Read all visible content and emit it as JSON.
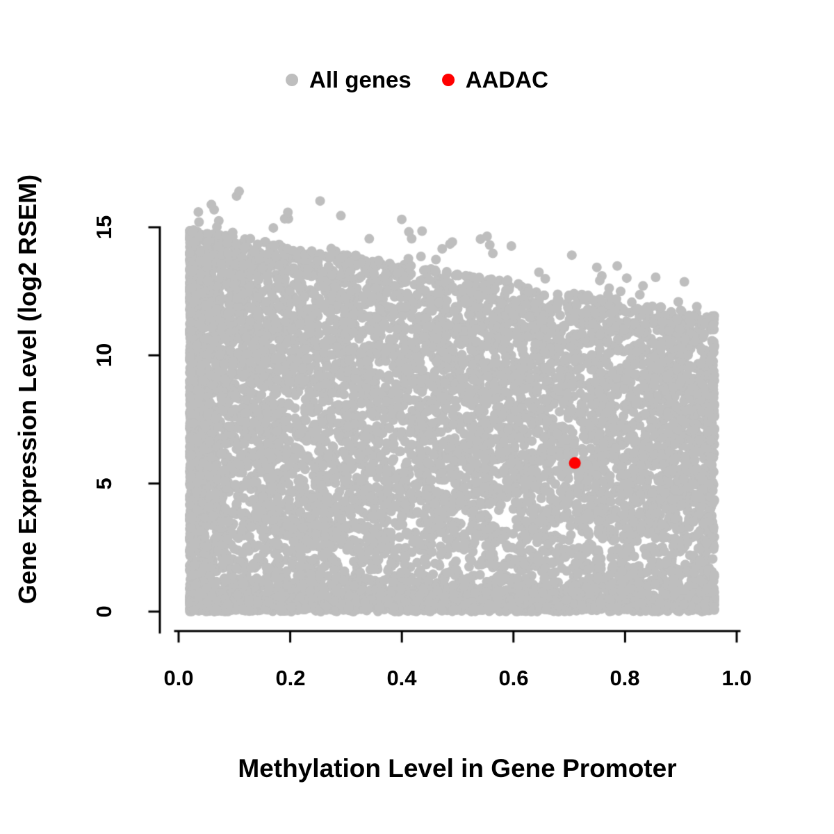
{
  "figure": {
    "background": "#ffffff",
    "axis_color": "#000000"
  },
  "chart_data": {
    "type": "scatter",
    "title": "",
    "xlabel": "Methylation Level in Gene Promoter",
    "ylabel": "Gene Expression Level (log2 RSEM)",
    "xlim": [
      0.0,
      1.0
    ],
    "ylim": [
      0,
      17.5
    ],
    "grid": false,
    "x_ticks": [
      "0.0",
      "0.2",
      "0.4",
      "0.6",
      "0.8",
      "1.0"
    ],
    "x_tick_values": [
      0.0,
      0.2,
      0.4,
      0.6,
      0.8,
      1.0
    ],
    "y_ticks": [
      "0",
      "5",
      "10",
      "15"
    ],
    "y_tick_values": [
      0,
      5,
      10,
      15
    ],
    "legend": {
      "position": "top-center",
      "entries": [
        {
          "label": "All genes",
          "color": "#BEBEBE",
          "marker": "circle"
        },
        {
          "label": "AADAC",
          "color": "#FF0000",
          "marker": "circle"
        }
      ]
    },
    "series": [
      {
        "name": "All genes",
        "color": "#BEBEBE",
        "render": "dense-cloud",
        "marker_radius": 7,
        "cloud": {
          "n_points": 9000,
          "seed": 42,
          "x_min": 0.02,
          "x_max": 0.96,
          "envelope_intercept": 15.0,
          "envelope_slope": -3.6,
          "bottom_band_fraction": 0.16,
          "bottom_band_sd": 0.55,
          "vertical_power": 0.85,
          "n_outliers": 55,
          "outlier_max_extra": 2.3,
          "y_max_cap": 17.3
        }
      },
      {
        "name": "AADAC",
        "color": "#FF0000",
        "render": "points",
        "marker_radius": 8.5,
        "points": [
          [
            0.71,
            5.8
          ]
        ]
      }
    ]
  }
}
